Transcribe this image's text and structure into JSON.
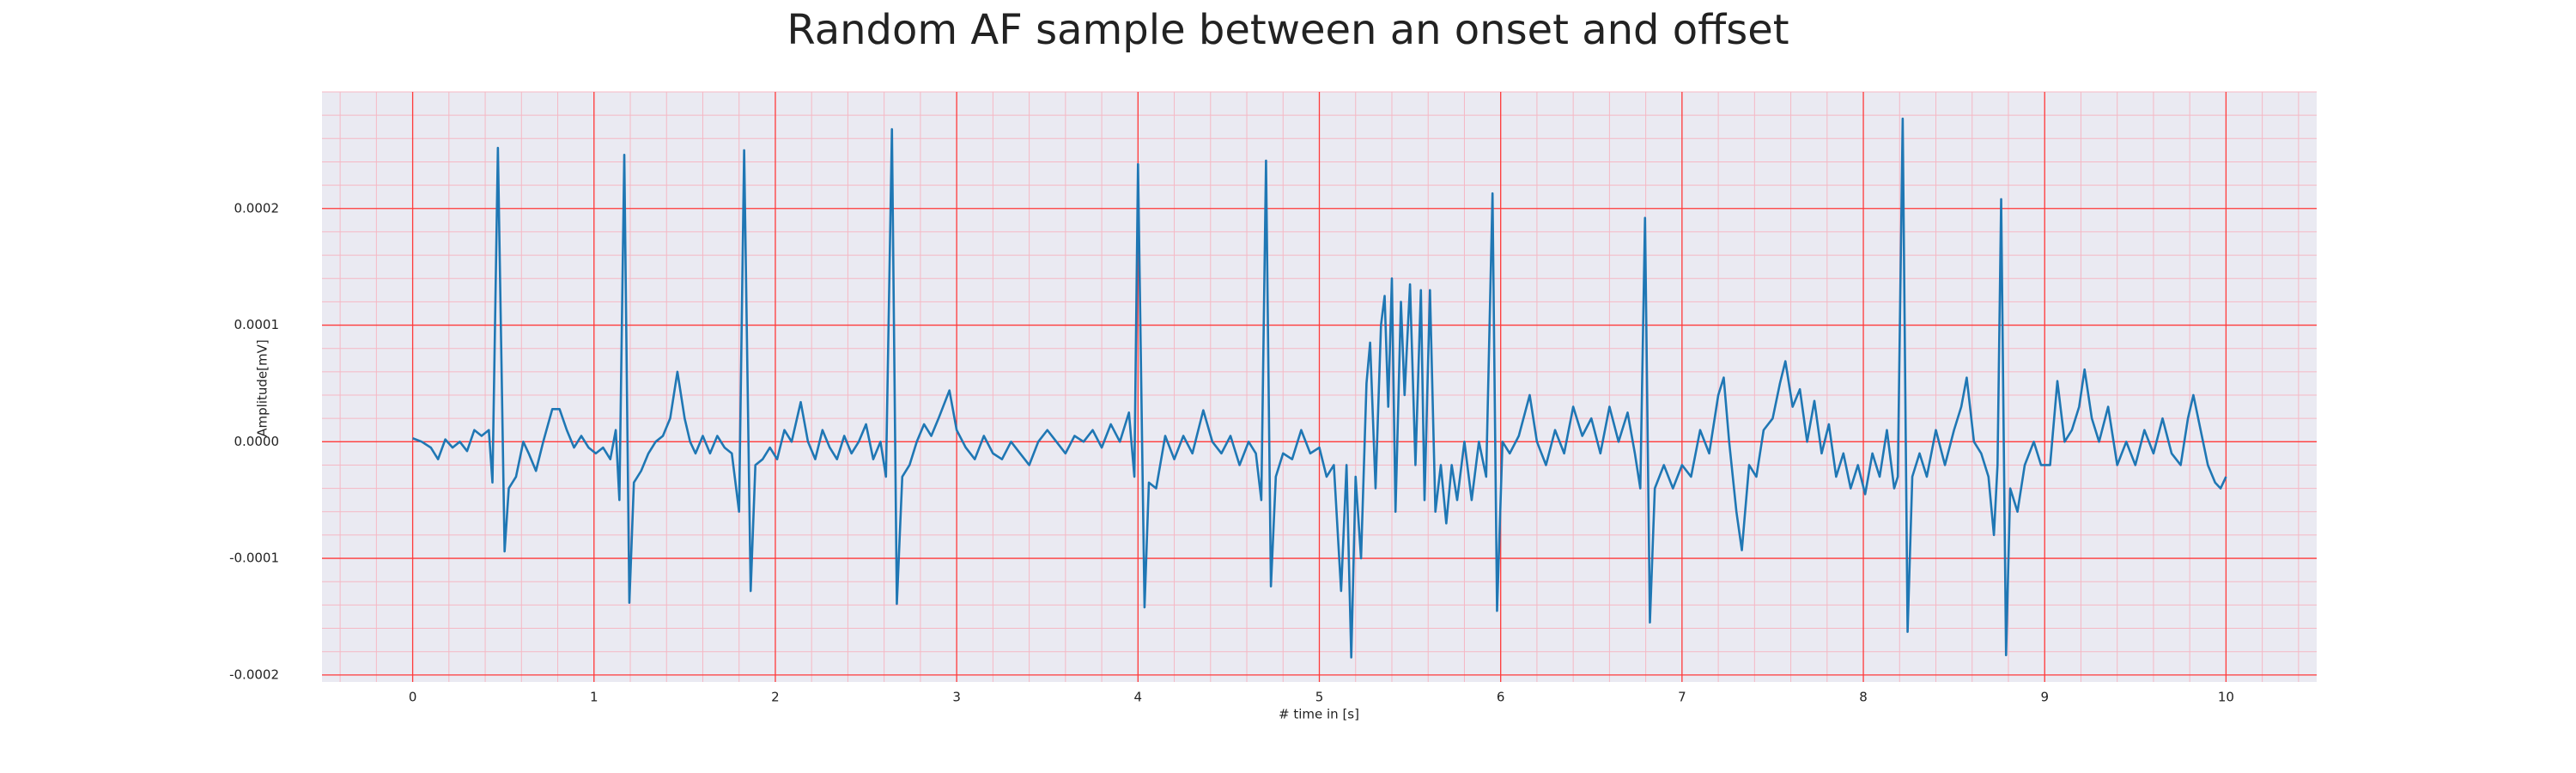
{
  "chart_data": {
    "type": "line",
    "title": "Random AF sample between an onset and offset",
    "xlabel": "# time in [s]",
    "ylabel": "Amplitude[mV]",
    "color": "#1f77b4",
    "grid": true,
    "minor_grid": true,
    "grid_color": "#ff3b3b",
    "minor_grid_color": "#f5b8c4",
    "background": "#eaeaf2",
    "xlim": [
      -0.5,
      10.5
    ],
    "ylim": [
      -0.000206,
      0.0003
    ],
    "xticks": [
      0,
      1,
      2,
      3,
      4,
      5,
      6,
      7,
      8,
      9,
      10
    ],
    "yticks": [
      {
        "value": -0.0002,
        "label": "-0.0002"
      },
      {
        "value": -0.0001,
        "label": "-0.0001"
      },
      {
        "value": 0,
        "label": "0.0000"
      },
      {
        "value": 0.0001,
        "label": "0.0001"
      },
      {
        "value": 0.0002,
        "label": "0.0002"
      }
    ],
    "x": [
      0,
      0.05,
      0.1,
      0.14,
      0.18,
      0.22,
      0.26,
      0.3,
      0.34,
      0.38,
      0.42,
      0.44,
      0.47,
      0.507,
      0.53,
      0.57,
      0.61,
      0.64,
      0.68,
      0.72,
      0.77,
      0.81,
      0.85,
      0.89,
      0.93,
      0.97,
      1.01,
      1.05,
      1.09,
      1.12,
      1.14,
      1.167,
      1.195,
      1.22,
      1.26,
      1.3,
      1.34,
      1.38,
      1.42,
      1.46,
      1.5,
      1.53,
      1.56,
      1.6,
      1.64,
      1.68,
      1.72,
      1.76,
      1.8,
      1.828,
      1.864,
      1.89,
      1.93,
      1.97,
      2.01,
      2.05,
      2.09,
      2.14,
      2.18,
      2.22,
      2.26,
      2.3,
      2.34,
      2.38,
      2.42,
      2.46,
      2.5,
      2.54,
      2.58,
      2.61,
      2.643,
      2.67,
      2.7,
      2.74,
      2.78,
      2.82,
      2.86,
      2.9,
      2.96,
      3,
      3.05,
      3.1,
      3.15,
      3.2,
      3.25,
      3.3,
      3.35,
      3.4,
      3.45,
      3.5,
      3.55,
      3.6,
      3.65,
      3.7,
      3.75,
      3.8,
      3.85,
      3.9,
      3.95,
      3.98,
      4,
      4.036,
      4.06,
      4.1,
      4.15,
      4.2,
      4.25,
      4.3,
      4.36,
      4.41,
      4.46,
      4.51,
      4.56,
      4.61,
      4.65,
      4.68,
      4.706,
      4.733,
      4.76,
      4.8,
      4.85,
      4.9,
      4.95,
      5,
      5.04,
      5.08,
      5.12,
      5.15,
      5.176,
      5.2,
      5.23,
      5.26,
      5.28,
      5.31,
      5.34,
      5.36,
      5.38,
      5.4,
      5.42,
      5.45,
      5.47,
      5.5,
      5.53,
      5.56,
      5.58,
      5.61,
      5.64,
      5.67,
      5.7,
      5.73,
      5.76,
      5.8,
      5.84,
      5.88,
      5.92,
      5.955,
      5.98,
      6.01,
      6.05,
      6.1,
      6.16,
      6.2,
      6.25,
      6.3,
      6.35,
      6.4,
      6.45,
      6.5,
      6.55,
      6.6,
      6.65,
      6.7,
      6.74,
      6.77,
      6.796,
      6.823,
      6.85,
      6.9,
      6.95,
      7,
      7.05,
      7.1,
      7.15,
      7.2,
      7.23,
      7.26,
      7.3,
      7.33,
      7.37,
      7.41,
      7.45,
      7.5,
      7.54,
      7.57,
      7.61,
      7.65,
      7.69,
      7.73,
      7.77,
      7.81,
      7.85,
      7.89,
      7.93,
      7.97,
      8.01,
      8.05,
      8.09,
      8.13,
      8.17,
      8.19,
      8.217,
      8.244,
      8.27,
      8.31,
      8.35,
      8.4,
      8.45,
      8.5,
      8.54,
      8.57,
      8.61,
      8.65,
      8.69,
      8.72,
      8.74,
      8.76,
      8.787,
      8.81,
      8.85,
      8.89,
      8.94,
      8.98,
      9.03,
      9.07,
      9.11,
      9.15,
      9.19,
      9.22,
      9.26,
      9.3,
      9.35,
      9.4,
      9.45,
      9.5,
      9.55,
      9.6,
      9.65,
      9.7,
      9.75,
      9.79,
      9.82,
      9.86,
      9.9,
      9.94,
      9.97,
      10
    ],
    "values": [
      3e-06,
      0,
      -5e-06,
      -1.5e-05,
      2e-06,
      -5e-06,
      0,
      -8e-06,
      1e-05,
      5e-06,
      1e-05,
      -3.5e-05,
      0.000252,
      -9.4e-05,
      -4e-05,
      -3e-05,
      0,
      -1e-05,
      -2.5e-05,
      0,
      2.8e-05,
      2.8e-05,
      1e-05,
      -5e-06,
      5e-06,
      -5e-06,
      -1e-05,
      -5e-06,
      -1.5e-05,
      1e-05,
      -5e-05,
      0.000246,
      -0.000138,
      -3.5e-05,
      -2.5e-05,
      -1e-05,
      0,
      5e-06,
      2e-05,
      6e-05,
      2e-05,
      0,
      -1e-05,
      5e-06,
      -1e-05,
      5e-06,
      -5e-06,
      -1e-05,
      -6e-05,
      0.00025,
      -0.000128,
      -2e-05,
      -1.5e-05,
      -5e-06,
      -1.5e-05,
      1e-05,
      0,
      3.4e-05,
      0,
      -1.5e-05,
      1e-05,
      -5e-06,
      -1.5e-05,
      5e-06,
      -1e-05,
      0,
      1.5e-05,
      -1.5e-05,
      0,
      -3e-05,
      0.000268,
      -0.000139,
      -3e-05,
      -2e-05,
      0,
      1.5e-05,
      5e-06,
      2e-05,
      4.4e-05,
      1e-05,
      -5e-06,
      -1.5e-05,
      5e-06,
      -1e-05,
      -1.5e-05,
      0,
      -1e-05,
      -2e-05,
      0,
      1e-05,
      0,
      -1e-05,
      5e-06,
      0,
      1e-05,
      -5e-06,
      1.5e-05,
      0,
      2.5e-05,
      -3e-05,
      0.000238,
      -0.000142,
      -3.5e-05,
      -4e-05,
      5e-06,
      -1.5e-05,
      5e-06,
      -1e-05,
      2.7e-05,
      0,
      -1e-05,
      5e-06,
      -2e-05,
      0,
      -1e-05,
      -5e-05,
      0.000241,
      -0.000124,
      -3e-05,
      -1e-05,
      -1.5e-05,
      1e-05,
      -1e-05,
      -5e-06,
      -3e-05,
      -2e-05,
      -0.000128,
      -2e-05,
      -0.000185,
      -3e-05,
      -0.0001,
      5e-05,
      8.5e-05,
      -4e-05,
      0.0001,
      0.000125,
      3e-05,
      0.00014,
      -6e-05,
      0.00012,
      4e-05,
      0.000135,
      -2e-05,
      0.00013,
      -5e-05,
      0.00013,
      -6e-05,
      -2e-05,
      -7e-05,
      -2e-05,
      -5e-05,
      0,
      -5e-05,
      0,
      -3e-05,
      0.000213,
      -0.000145,
      0,
      -1e-05,
      5e-06,
      4e-05,
      0,
      -2e-05,
      1e-05,
      -1e-05,
      3e-05,
      5e-06,
      2e-05,
      -1e-05,
      3e-05,
      0,
      2.5e-05,
      -1e-05,
      -4e-05,
      0.000192,
      -0.000155,
      -4e-05,
      -2e-05,
      -4e-05,
      -2e-05,
      -3e-05,
      1e-05,
      -1e-05,
      4e-05,
      5.5e-05,
      0,
      -6e-05,
      -9.3e-05,
      -2e-05,
      -3e-05,
      1e-05,
      2e-05,
      5e-05,
      6.9e-05,
      3e-05,
      4.5e-05,
      0,
      3.5e-05,
      -1e-05,
      1.5e-05,
      -3e-05,
      -1e-05,
      -4e-05,
      -2e-05,
      -4.5e-05,
      -1e-05,
      -3e-05,
      1e-05,
      -4e-05,
      -3e-05,
      0.000277,
      -0.000163,
      -3e-05,
      -1e-05,
      -3e-05,
      1e-05,
      -2e-05,
      1e-05,
      3e-05,
      5.5e-05,
      0,
      -1e-05,
      -3e-05,
      -8e-05,
      -2e-05,
      0.000208,
      -0.000183,
      -4e-05,
      -6e-05,
      -2e-05,
      0,
      -2e-05,
      -2e-05,
      5.2e-05,
      0,
      1e-05,
      3e-05,
      6.2e-05,
      2e-05,
      0,
      3e-05,
      -2e-05,
      0,
      -2e-05,
      1e-05,
      -1e-05,
      2e-05,
      -1e-05,
      -2e-05,
      2e-05,
      4e-05,
      1e-05,
      -2e-05,
      -3.5e-05,
      -4e-05,
      -3e-05
    ]
  }
}
